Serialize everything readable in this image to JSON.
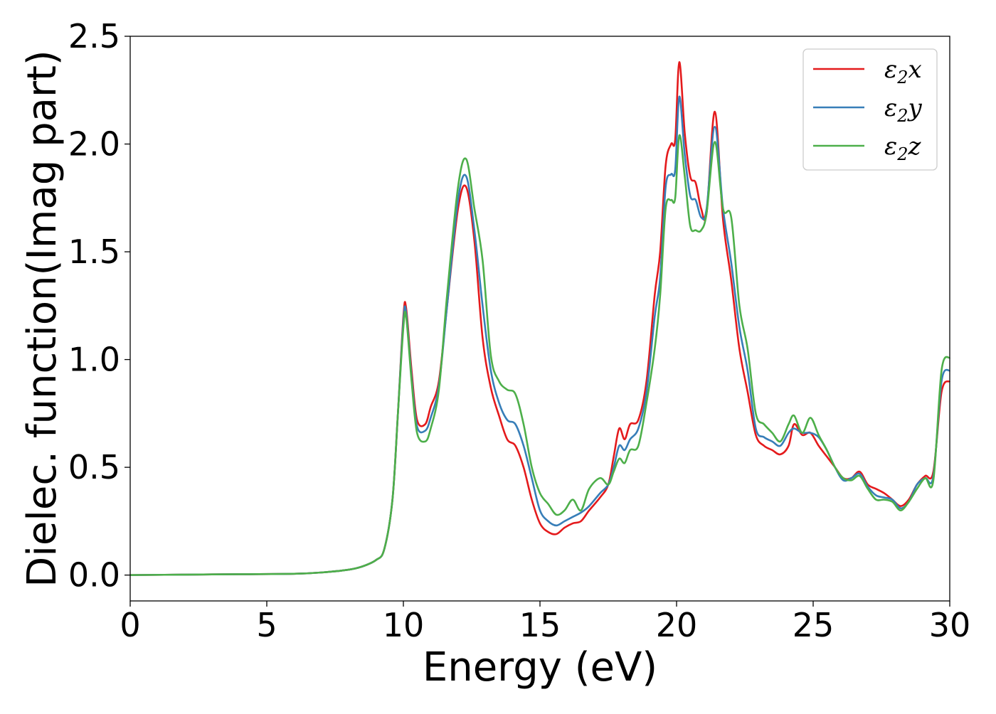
{
  "chart_data": {
    "type": "line",
    "title": "",
    "xlabel": "Energy (eV)",
    "ylabel": "Dielec. function(Imag part)",
    "xlim": [
      0,
      30
    ],
    "ylim": [
      -0.12,
      2.5
    ],
    "xticks": [
      "0",
      "5",
      "10",
      "15",
      "20",
      "25",
      "30"
    ],
    "yticks": [
      "0.0",
      "0.5",
      "1.0",
      "1.5",
      "2.0",
      "2.5"
    ],
    "grid": false,
    "legend_position": "top-right",
    "series": [
      {
        "name": "ε₂x",
        "legend_base": "ε",
        "legend_sub": "2",
        "legend_suffix": "x",
        "color": "#e41a1c",
        "x": [
          0,
          2,
          4,
          6,
          7,
          8,
          8.5,
          9,
          9.3,
          9.6,
          9.8,
          10.0,
          10.1,
          10.3,
          10.5,
          10.8,
          11.0,
          11.3,
          11.6,
          12.0,
          12.3,
          12.6,
          12.9,
          13.2,
          13.5,
          13.8,
          14.1,
          14.4,
          14.7,
          15.0,
          15.3,
          15.6,
          15.9,
          16.2,
          16.5,
          16.8,
          17.2,
          17.5,
          17.7,
          17.9,
          18.1,
          18.3,
          18.6,
          18.9,
          19.2,
          19.4,
          19.6,
          19.8,
          19.95,
          20.1,
          20.3,
          20.5,
          20.7,
          20.9,
          21.1,
          21.4,
          21.7,
          22.0,
          22.3,
          22.6,
          22.9,
          23.2,
          23.5,
          23.8,
          24.1,
          24.3,
          24.6,
          24.9,
          25.2,
          25.5,
          25.8,
          26.1,
          26.4,
          26.7,
          27.0,
          27.3,
          27.6,
          27.9,
          28.2,
          28.5,
          28.8,
          29.1,
          29.4,
          29.7,
          30.0
        ],
        "y": [
          0.0,
          0.002,
          0.004,
          0.006,
          0.012,
          0.025,
          0.04,
          0.07,
          0.12,
          0.35,
          0.75,
          1.2,
          1.24,
          0.95,
          0.72,
          0.7,
          0.78,
          0.9,
          1.25,
          1.7,
          1.8,
          1.55,
          1.1,
          0.87,
          0.74,
          0.63,
          0.6,
          0.5,
          0.35,
          0.24,
          0.2,
          0.19,
          0.22,
          0.24,
          0.25,
          0.3,
          0.36,
          0.42,
          0.55,
          0.68,
          0.63,
          0.7,
          0.72,
          0.9,
          1.3,
          1.5,
          1.9,
          2.0,
          2.02,
          2.38,
          2.05,
          1.85,
          1.82,
          1.7,
          1.68,
          2.15,
          1.65,
          1.37,
          1.05,
          0.85,
          0.65,
          0.6,
          0.58,
          0.56,
          0.6,
          0.7,
          0.65,
          0.66,
          0.6,
          0.55,
          0.5,
          0.45,
          0.45,
          0.48,
          0.42,
          0.4,
          0.38,
          0.35,
          0.32,
          0.35,
          0.42,
          0.46,
          0.48,
          0.85,
          0.9
        ]
      },
      {
        "name": "ε₂y",
        "legend_base": "ε",
        "legend_sub": "2",
        "legend_suffix": "y",
        "color": "#377eb8",
        "x": [
          0,
          2,
          4,
          6,
          7,
          8,
          8.5,
          9,
          9.3,
          9.6,
          9.8,
          10.0,
          10.1,
          10.3,
          10.5,
          10.8,
          11.0,
          11.3,
          11.6,
          12.0,
          12.3,
          12.6,
          12.9,
          13.2,
          13.5,
          13.8,
          14.1,
          14.4,
          14.7,
          15.0,
          15.3,
          15.6,
          15.9,
          16.2,
          16.5,
          16.8,
          17.2,
          17.5,
          17.7,
          17.9,
          18.1,
          18.3,
          18.6,
          18.9,
          19.2,
          19.4,
          19.6,
          19.8,
          19.95,
          20.1,
          20.3,
          20.5,
          20.7,
          20.9,
          21.1,
          21.4,
          21.7,
          22.0,
          22.3,
          22.6,
          22.9,
          23.2,
          23.5,
          23.8,
          24.1,
          24.3,
          24.6,
          24.9,
          25.2,
          25.5,
          25.8,
          26.1,
          26.4,
          26.7,
          27.0,
          27.3,
          27.6,
          27.9,
          28.2,
          28.5,
          28.8,
          29.1,
          29.4,
          29.7,
          30.0
        ],
        "y": [
          0.0,
          0.002,
          0.004,
          0.006,
          0.012,
          0.025,
          0.04,
          0.07,
          0.12,
          0.35,
          0.75,
          1.18,
          1.22,
          0.92,
          0.69,
          0.67,
          0.73,
          0.88,
          1.25,
          1.74,
          1.85,
          1.6,
          1.25,
          0.95,
          0.8,
          0.72,
          0.7,
          0.6,
          0.45,
          0.3,
          0.25,
          0.23,
          0.25,
          0.27,
          0.29,
          0.32,
          0.38,
          0.42,
          0.5,
          0.6,
          0.58,
          0.63,
          0.68,
          0.85,
          1.2,
          1.38,
          1.8,
          1.86,
          1.88,
          2.22,
          1.95,
          1.76,
          1.74,
          1.66,
          1.7,
          2.08,
          1.7,
          1.45,
          1.15,
          0.95,
          0.68,
          0.64,
          0.62,
          0.6,
          0.66,
          0.68,
          0.66,
          0.66,
          0.64,
          0.58,
          0.5,
          0.44,
          0.45,
          0.47,
          0.41,
          0.37,
          0.36,
          0.35,
          0.31,
          0.34,
          0.42,
          0.45,
          0.46,
          0.9,
          0.95
        ]
      },
      {
        "name": "ε₂z",
        "legend_base": "ε",
        "legend_sub": "2",
        "legend_suffix": "z",
        "color": "#4daf4a",
        "x": [
          0,
          2,
          4,
          6,
          7,
          8,
          8.5,
          9,
          9.3,
          9.6,
          9.8,
          10.0,
          10.1,
          10.3,
          10.5,
          10.8,
          11.0,
          11.3,
          11.6,
          12.0,
          12.3,
          12.6,
          12.9,
          13.2,
          13.5,
          13.8,
          14.1,
          14.4,
          14.7,
          15.0,
          15.3,
          15.6,
          15.9,
          16.2,
          16.5,
          16.8,
          17.2,
          17.5,
          17.7,
          17.9,
          18.1,
          18.3,
          18.6,
          18.9,
          19.2,
          19.4,
          19.6,
          19.8,
          19.95,
          20.1,
          20.3,
          20.5,
          20.7,
          20.9,
          21.1,
          21.4,
          21.7,
          22.0,
          22.3,
          22.6,
          22.9,
          23.2,
          23.5,
          23.8,
          24.1,
          24.3,
          24.6,
          24.9,
          25.2,
          25.5,
          25.8,
          26.1,
          26.4,
          26.7,
          27.0,
          27.3,
          27.6,
          27.9,
          28.2,
          28.5,
          28.8,
          29.1,
          29.4,
          29.7,
          30.0
        ],
        "y": [
          0.0,
          0.002,
          0.004,
          0.006,
          0.012,
          0.025,
          0.04,
          0.07,
          0.12,
          0.35,
          0.75,
          1.15,
          1.2,
          0.9,
          0.66,
          0.62,
          0.68,
          0.86,
          1.3,
          1.8,
          1.93,
          1.7,
          1.46,
          1.02,
          0.9,
          0.86,
          0.84,
          0.7,
          0.5,
          0.38,
          0.33,
          0.28,
          0.3,
          0.35,
          0.3,
          0.4,
          0.45,
          0.42,
          0.48,
          0.54,
          0.52,
          0.58,
          0.6,
          0.8,
          1.05,
          1.3,
          1.7,
          1.74,
          1.75,
          2.04,
          1.85,
          1.62,
          1.6,
          1.6,
          1.68,
          2.01,
          1.7,
          1.66,
          1.25,
          1.05,
          0.75,
          0.7,
          0.66,
          0.62,
          0.7,
          0.74,
          0.66,
          0.73,
          0.65,
          0.58,
          0.5,
          0.45,
          0.44,
          0.46,
          0.4,
          0.35,
          0.35,
          0.34,
          0.3,
          0.34,
          0.4,
          0.45,
          0.44,
          0.95,
          1.01
        ]
      }
    ]
  }
}
